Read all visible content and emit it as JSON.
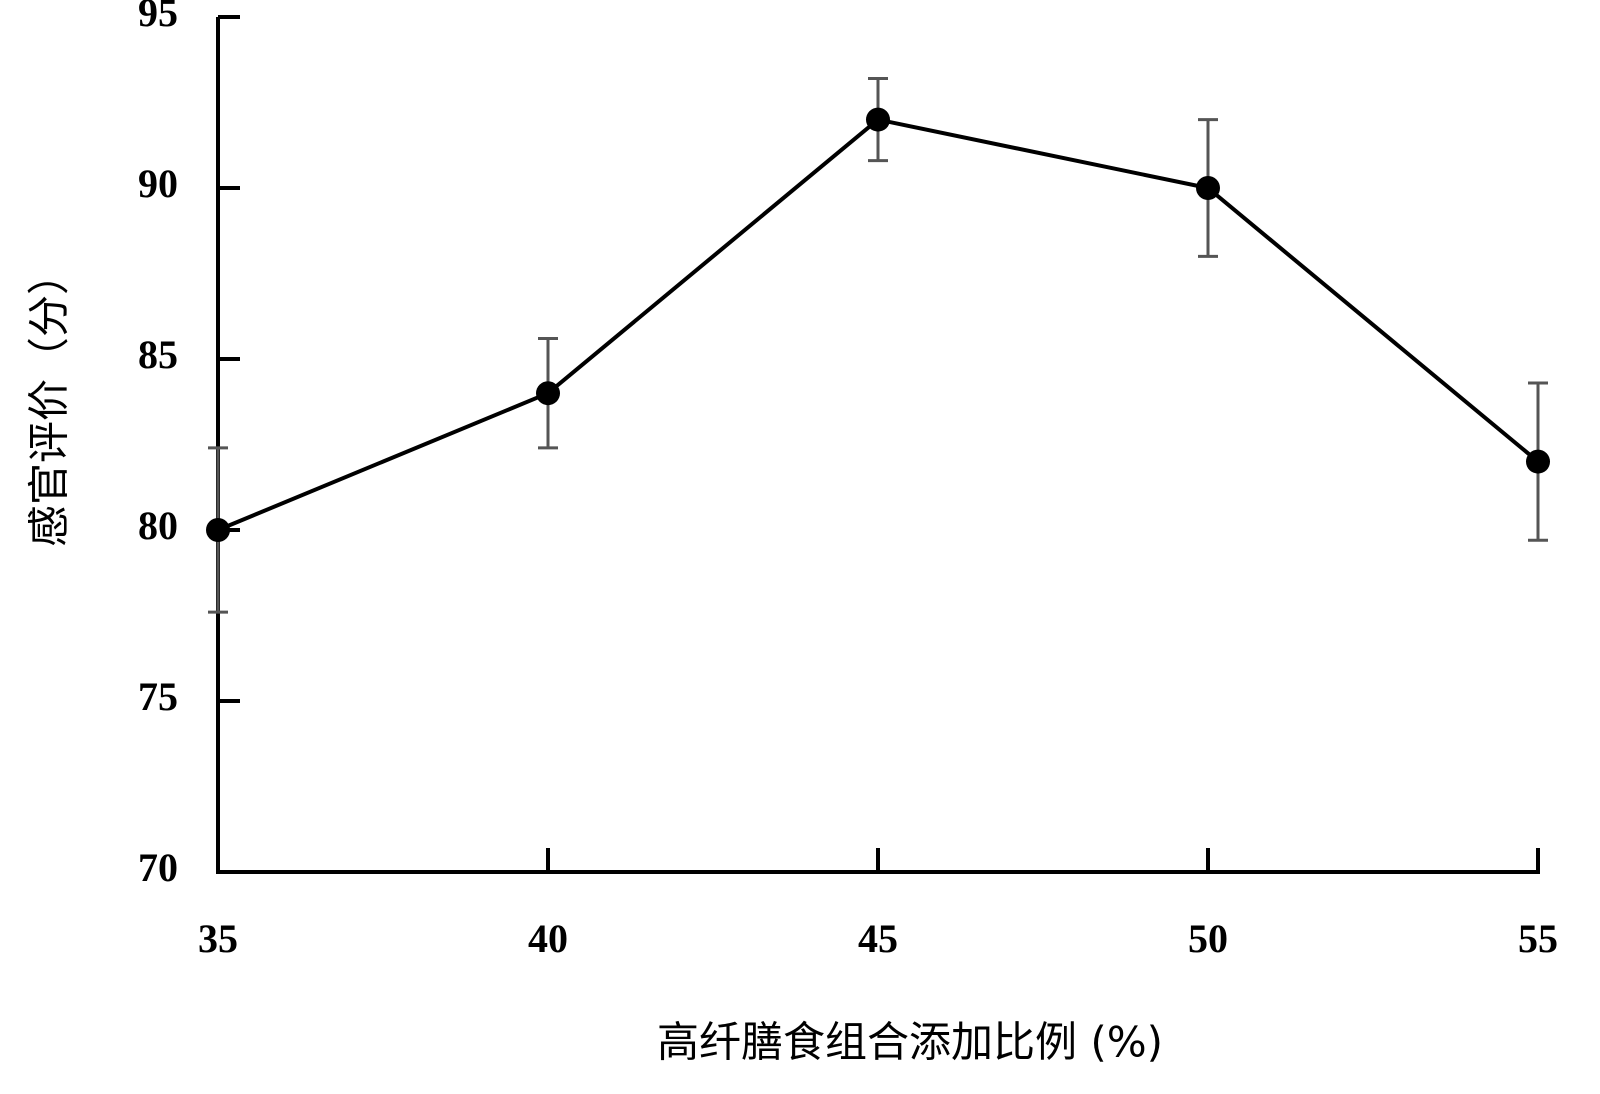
{
  "chart_data": {
    "type": "line",
    "x_label": "高纤膳食组合添加比例 (%)",
    "y_label": "感官评价（分）",
    "x": [
      35,
      40,
      45,
      50,
      55
    ],
    "values": [
      80,
      84,
      92,
      90,
      82
    ],
    "errors": [
      2.4,
      1.6,
      1.2,
      2,
      2.3
    ],
    "color": "#000000",
    "error_color": "#555555",
    "xlim": [
      35,
      55
    ],
    "xticks": [
      35,
      40,
      45,
      50,
      55
    ],
    "ylim": [
      70,
      95
    ],
    "yticks": [
      70,
      75,
      80,
      85,
      90,
      95
    ],
    "grid": false
  }
}
